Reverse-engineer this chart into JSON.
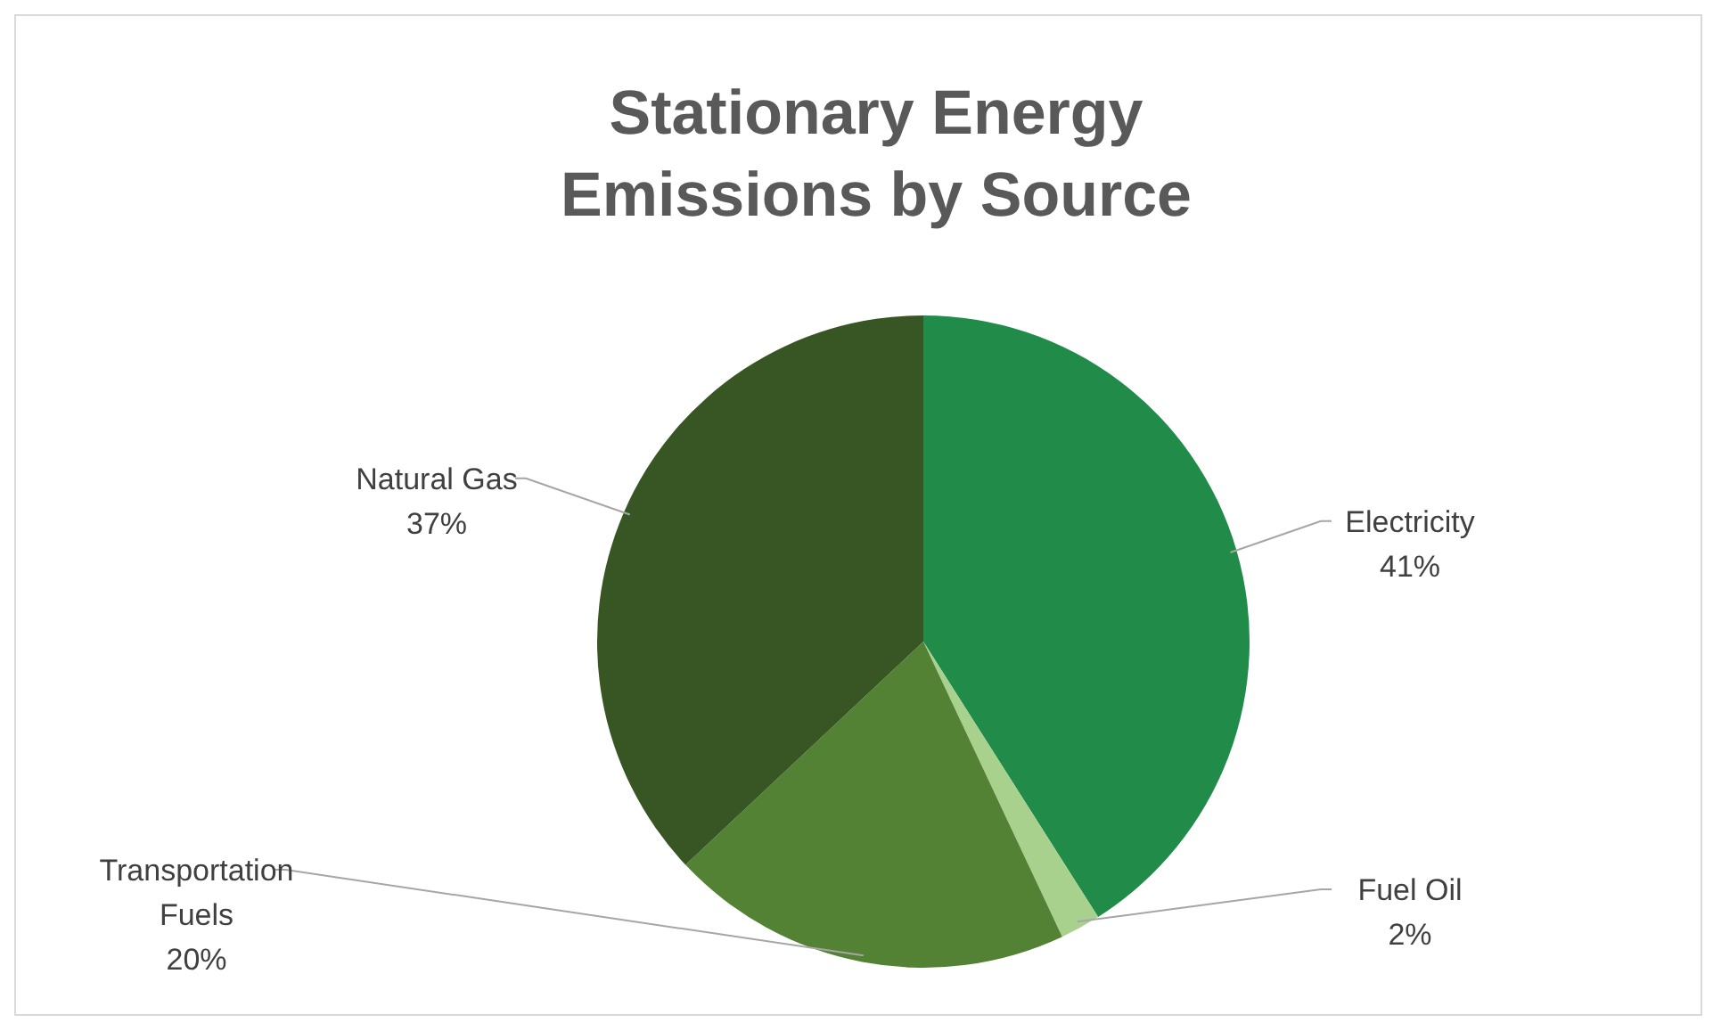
{
  "chart_data": {
    "type": "pie",
    "title": "Stationary Energy Emissions by Source",
    "categories": [
      "Electricity",
      "Fuel Oil",
      "Transportation Fuels",
      "Natural Gas"
    ],
    "values": [
      41,
      2,
      20,
      37
    ],
    "value_labels": [
      "41%",
      "2%",
      "20%",
      "37%"
    ],
    "colors": [
      "#218b4a",
      "#a9d18e",
      "#548235",
      "#375623"
    ],
    "legend": false
  }
}
